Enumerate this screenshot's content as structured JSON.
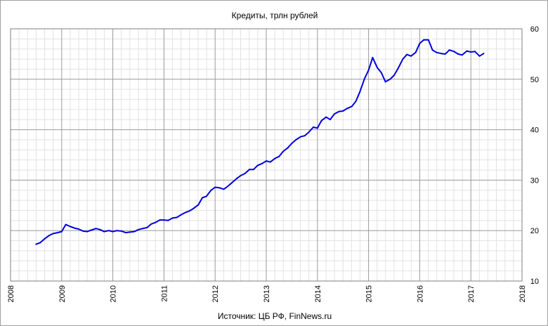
{
  "chart_data": {
    "type": "line",
    "title": "Кредиты, трлн рублей",
    "source": "Источник: ЦБ РФ, FinNews.ru",
    "xlabel": "",
    "ylabel": "",
    "xlim": [
      2008,
      2018
    ],
    "ylim": [
      10,
      60
    ],
    "x_ticks": [
      "2008",
      "2009",
      "2010",
      "2011",
      "2012",
      "2013",
      "2014",
      "2015",
      "2016",
      "2017",
      "2018"
    ],
    "y_ticks": [
      "10",
      "20",
      "30",
      "40",
      "50",
      "60"
    ],
    "y_axis_side": "right",
    "grid": true,
    "line_color": "#0000dd",
    "series": [
      {
        "x": [
          2008.5,
          2008.58,
          2008.67,
          2008.75,
          2008.83,
          2008.92,
          2009.0,
          2009.08,
          2009.17,
          2009.25,
          2009.33,
          2009.42,
          2009.5,
          2009.58,
          2009.67,
          2009.75,
          2009.83,
          2009.92,
          2010.0,
          2010.08,
          2010.17,
          2010.25,
          2010.33,
          2010.42,
          2010.5,
          2010.58,
          2010.67,
          2010.75,
          2010.83,
          2010.92,
          2011.0,
          2011.08,
          2011.17,
          2011.25,
          2011.33,
          2011.42,
          2011.5,
          2011.58,
          2011.67,
          2011.75,
          2011.83,
          2011.92,
          2012.0,
          2012.08,
          2012.17,
          2012.25,
          2012.33,
          2012.42,
          2012.5,
          2012.58,
          2012.67,
          2012.75,
          2012.83,
          2012.92,
          2013.0,
          2013.08,
          2013.17,
          2013.25,
          2013.33,
          2013.42,
          2013.5,
          2013.58,
          2013.67,
          2013.75,
          2013.83,
          2013.92,
          2014.0,
          2014.08,
          2014.17,
          2014.25,
          2014.33,
          2014.42,
          2014.5,
          2014.58,
          2014.67,
          2014.75,
          2014.83,
          2014.92,
          2015.0,
          2015.08,
          2015.17,
          2015.25,
          2015.33,
          2015.42,
          2015.5,
          2015.58,
          2015.67,
          2015.75,
          2015.83,
          2015.92,
          2016.0,
          2016.08,
          2016.17,
          2016.25,
          2016.33,
          2016.42,
          2016.5,
          2016.58,
          2016.67,
          2016.75,
          2016.83,
          2016.92,
          2017.0,
          2017.08,
          2017.17,
          2017.25
        ],
        "values": [
          17.3,
          17.6,
          18.4,
          19.0,
          19.4,
          19.6,
          19.8,
          21.2,
          20.8,
          20.5,
          20.3,
          19.9,
          19.8,
          20.1,
          20.4,
          20.2,
          19.8,
          20.0,
          19.8,
          20.0,
          19.9,
          19.6,
          19.7,
          19.8,
          20.2,
          20.4,
          20.6,
          21.3,
          21.6,
          22.1,
          22.1,
          22.0,
          22.5,
          22.6,
          23.1,
          23.6,
          23.9,
          24.4,
          25.1,
          26.5,
          26.8,
          28.0,
          28.6,
          28.5,
          28.2,
          28.8,
          29.5,
          30.3,
          30.9,
          31.3,
          32.1,
          32.1,
          32.9,
          33.3,
          33.8,
          33.6,
          34.3,
          34.7,
          35.7,
          36.4,
          37.3,
          38.0,
          38.6,
          38.8,
          39.5,
          40.5,
          40.3,
          41.8,
          42.5,
          42.0,
          43.1,
          43.6,
          43.7,
          44.2,
          44.6,
          45.6,
          47.5,
          50.1,
          51.8,
          54.3,
          52.3,
          51.3,
          49.5,
          50.0,
          50.8,
          52.2,
          54.0,
          54.9,
          54.6,
          55.3,
          57.1,
          57.8,
          57.8,
          55.8,
          55.3,
          55.1,
          55.0,
          55.8,
          55.5,
          55.0,
          54.8,
          55.6,
          55.4,
          55.5,
          54.6,
          55.1
        ]
      }
    ]
  }
}
